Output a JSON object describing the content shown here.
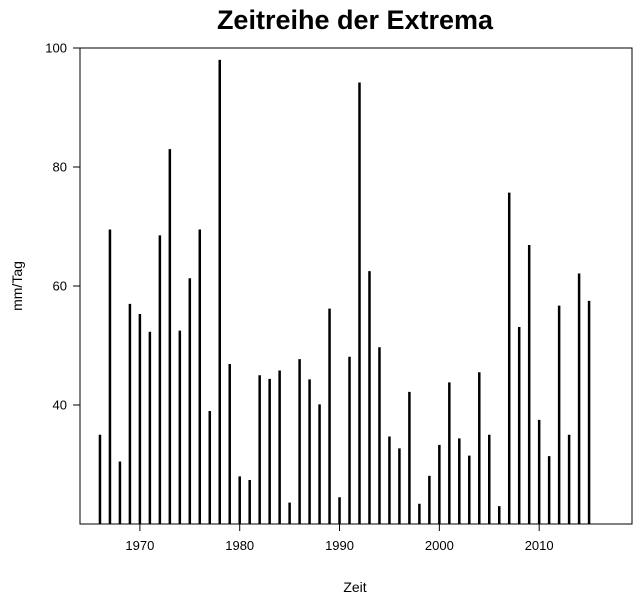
{
  "chart_data": {
    "type": "bar",
    "title": "Zeitreihe der Extrema",
    "xlabel": "Zeit",
    "ylabel": "mm/Tag",
    "x": [
      1966,
      1967,
      1968,
      1969,
      1970,
      1971,
      1972,
      1973,
      1974,
      1975,
      1976,
      1977,
      1978,
      1979,
      1980,
      1981,
      1982,
      1983,
      1984,
      1985,
      1986,
      1987,
      1988,
      1989,
      1990,
      1991,
      1992,
      1993,
      1994,
      1995,
      1996,
      1997,
      1998,
      1999,
      2000,
      2001,
      2002,
      2003,
      2004,
      2005,
      2006,
      2007,
      2008,
      2009,
      2010,
      2011,
      2012,
      2013,
      2014,
      2015
    ],
    "values": [
      35.0,
      69.5,
      30.5,
      57.0,
      55.3,
      52.3,
      68.5,
      83.0,
      52.5,
      61.3,
      69.5,
      39.0,
      98.0,
      46.9,
      28.0,
      27.4,
      45.0,
      44.4,
      45.8,
      23.6,
      47.7,
      44.3,
      40.1,
      56.2,
      24.5,
      48.1,
      94.2,
      62.5,
      49.7,
      34.7,
      32.7,
      42.2,
      23.4,
      28.1,
      33.3,
      43.8,
      34.4,
      31.5,
      45.5,
      35.0,
      23.0,
      75.7,
      53.1,
      66.9,
      37.5,
      31.4,
      56.7,
      35.0,
      62.1,
      57.5
    ],
    "xlim": [
      1964.0,
      2019.3
    ],
    "ylim": [
      20.0,
      100.0
    ],
    "x_ticks": [
      "1970",
      "1980",
      "1990",
      "2000",
      "2010"
    ],
    "y_ticks": [
      "40",
      "60",
      "80",
      "100"
    ],
    "grid": false,
    "color": "#000000"
  }
}
